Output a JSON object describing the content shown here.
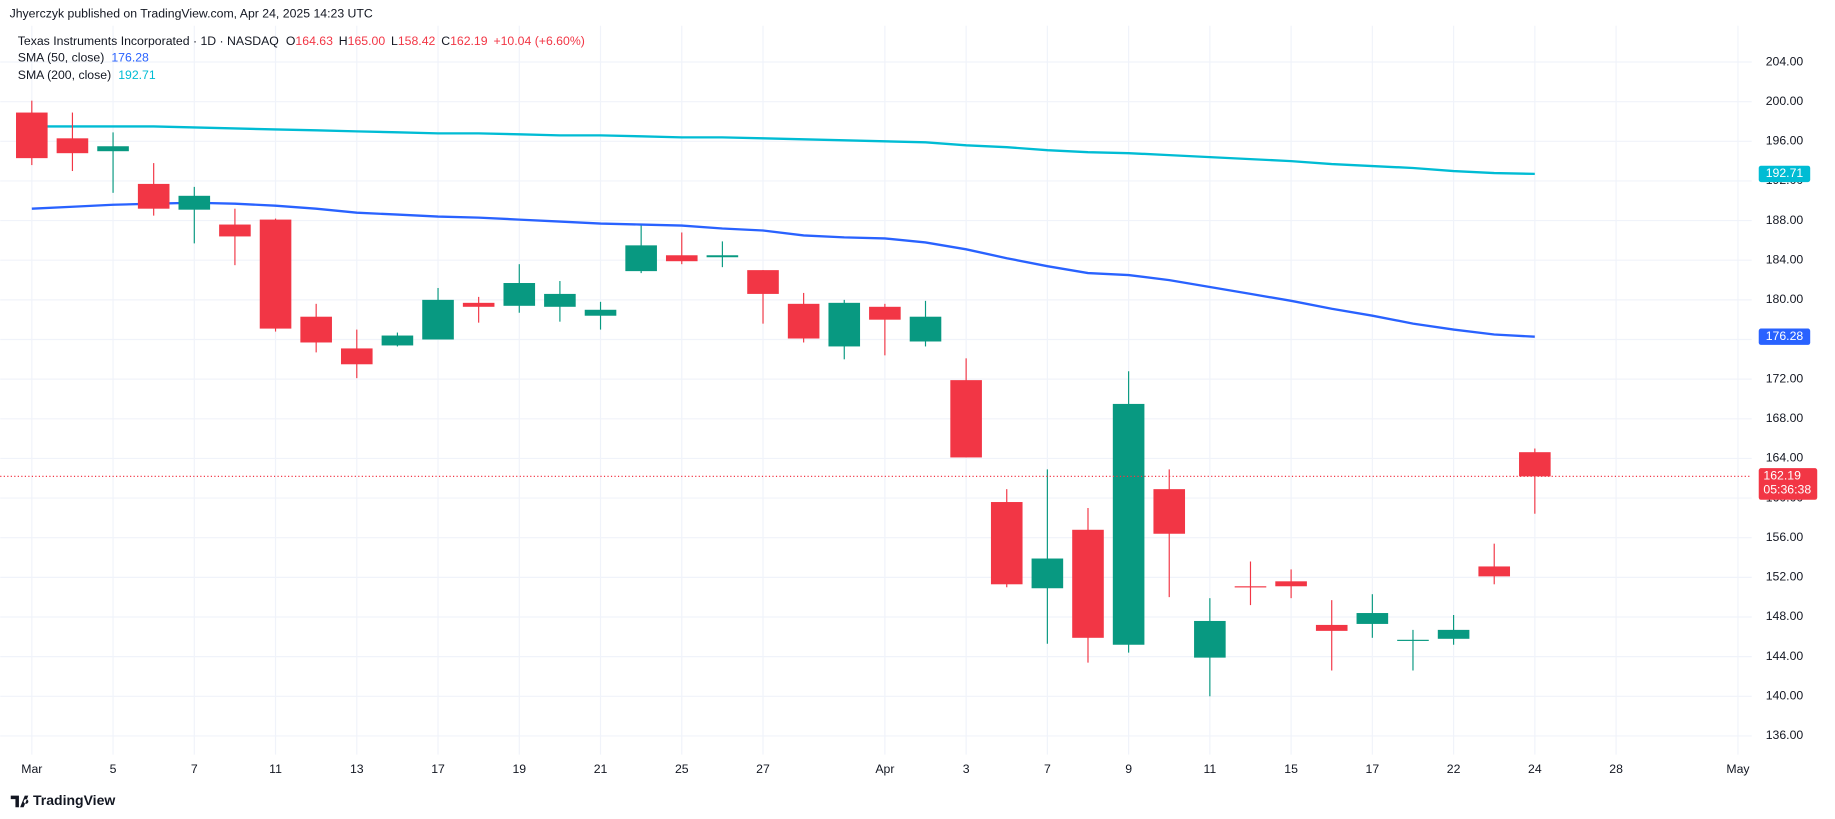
{
  "header": {
    "publisher": "Jhyerczyk published on TradingView.com, Apr 24, 2025 14:23 UTC",
    "footer": "TradingView"
  },
  "chart_data": {
    "type": "candlestick",
    "title": "Texas Instruments Incorporated · 1D · NASDAQ",
    "ohlc_legend": [
      {
        "label": "O",
        "value": "164.63"
      },
      {
        "label": "H",
        "value": "165.00"
      },
      {
        "label": "L",
        "value": "158.42"
      },
      {
        "label": "C",
        "value": "162.19"
      }
    ],
    "change": "+10.04 (+6.60%)",
    "countdown": "05:36:38",
    "up_color": "#089981",
    "down_color": "#f23645",
    "grid": true,
    "categories": [
      "Mar",
      null,
      "5",
      null,
      "7",
      null,
      "11",
      null,
      "13",
      null,
      "17",
      null,
      "19",
      null,
      "21",
      null,
      "25",
      null,
      "27",
      null,
      null,
      "Apr",
      null,
      "3",
      null,
      "7",
      null,
      "9",
      null,
      "11",
      null,
      "15",
      null,
      "17",
      null,
      "22",
      null,
      "24",
      null,
      "28",
      null,
      null,
      "May"
    ],
    "open": [
      198.9,
      196.3,
      195.0,
      191.7,
      189.1,
      187.6,
      188.1,
      178.3,
      175.1,
      175.4,
      176.0,
      179.7,
      179.4,
      179.3,
      178.4,
      182.9,
      184.5,
      184.3,
      183.0,
      179.6,
      175.3,
      179.3,
      175.8,
      171.9,
      159.6,
      150.9,
      156.8,
      145.2,
      160.9,
      143.9,
      151.1,
      151.6,
      147.2,
      147.3,
      145.6,
      145.8,
      153.1,
      164.63,
      null,
      null,
      null,
      null,
      null
    ],
    "high": [
      200.1,
      198.9,
      196.9,
      193.8,
      191.4,
      189.2,
      188.2,
      179.6,
      177.0,
      176.7,
      181.2,
      180.3,
      183.6,
      181.9,
      179.8,
      187.5,
      186.8,
      185.9,
      183.0,
      180.7,
      180.0,
      179.6,
      179.9,
      174.1,
      160.9,
      162.9,
      159.0,
      172.8,
      162.9,
      149.9,
      153.6,
      152.8,
      149.7,
      150.3,
      146.7,
      148.2,
      155.4,
      165,
      null,
      null,
      null,
      null,
      null
    ],
    "low": [
      193.6,
      193.0,
      190.8,
      188.5,
      185.7,
      183.5,
      176.8,
      174.7,
      172.1,
      175.3,
      176.0,
      177.7,
      178.7,
      177.8,
      177.0,
      182.7,
      183.6,
      183.3,
      177.6,
      175.7,
      174.0,
      174.4,
      175.3,
      164.1,
      151.0,
      145.3,
      143.4,
      144.4,
      150.0,
      140.0,
      149.2,
      149.9,
      142.6,
      145.9,
      142.6,
      145.2,
      151.3,
      158.42,
      null,
      null,
      null,
      null,
      null
    ],
    "close": [
      194.3,
      194.8,
      195.5,
      189.2,
      190.5,
      186.4,
      177.1,
      175.7,
      173.5,
      176.4,
      180.0,
      179.3,
      181.7,
      180.6,
      179.0,
      185.5,
      183.9,
      184.5,
      180.6,
      176.1,
      179.7,
      178.0,
      178.3,
      164.1,
      151.3,
      153.9,
      145.9,
      169.5,
      156.4,
      147.6,
      151.0,
      151.1,
      146.6,
      148.4,
      145.7,
      146.7,
      152.1,
      162.19,
      null,
      null,
      null,
      null,
      null
    ],
    "series": [
      {
        "name": "SMA (50, close)",
        "color": "#2962ff",
        "values": [
          189.2,
          189.4,
          189.6,
          189.7,
          189.8,
          189.7,
          189.5,
          189.2,
          188.8,
          188.6,
          188.4,
          188.3,
          188.1,
          187.9,
          187.7,
          187.6,
          187.5,
          187.2,
          187.0,
          186.5,
          186.3,
          186.2,
          185.8,
          185.1,
          184.2,
          183.4,
          182.7,
          182.5,
          182.0,
          181.3,
          180.6,
          179.9,
          179.1,
          178.4,
          177.6,
          177.0,
          176.5,
          176.28,
          null,
          null,
          null,
          null,
          null
        ]
      },
      {
        "name": "SMA (200, close)",
        "color": "#00bcd4",
        "values": [
          197.5,
          197.5,
          197.5,
          197.5,
          197.4,
          197.3,
          197.2,
          197.1,
          197.0,
          196.9,
          196.8,
          196.8,
          196.7,
          196.6,
          196.6,
          196.5,
          196.4,
          196.4,
          196.3,
          196.2,
          196.1,
          196.0,
          195.9,
          195.6,
          195.4,
          195.1,
          194.9,
          194.8,
          194.6,
          194.4,
          194.2,
          194.0,
          193.7,
          193.5,
          193.3,
          193.0,
          192.8,
          192.71,
          null,
          null,
          null,
          null,
          null
        ]
      }
    ],
    "ylim": [
      134.11,
      207.66
    ],
    "yticks": [
      {
        "value": 136,
        "label": "136.00"
      },
      {
        "value": 140,
        "label": "140.00"
      },
      {
        "value": 144,
        "label": "144.00"
      },
      {
        "value": 148,
        "label": "148.00"
      },
      {
        "value": 152,
        "label": "152.00"
      },
      {
        "value": 156,
        "label": "156.00"
      },
      {
        "value": 160,
        "label": "160.00"
      },
      {
        "value": 164,
        "label": "164.00"
      },
      {
        "value": 168,
        "label": "168.00"
      },
      {
        "value": 172,
        "label": "172.00"
      },
      {
        "value": 176,
        "label": "176.00"
      },
      {
        "value": 180,
        "label": "180.00"
      },
      {
        "value": 184,
        "label": "184.00"
      },
      {
        "value": 188,
        "label": "188.00"
      },
      {
        "value": 192,
        "label": "192.00"
      },
      {
        "value": 196,
        "label": "196.00"
      },
      {
        "value": 200,
        "label": "200.00"
      },
      {
        "value": 204,
        "label": "204.00"
      }
    ]
  }
}
